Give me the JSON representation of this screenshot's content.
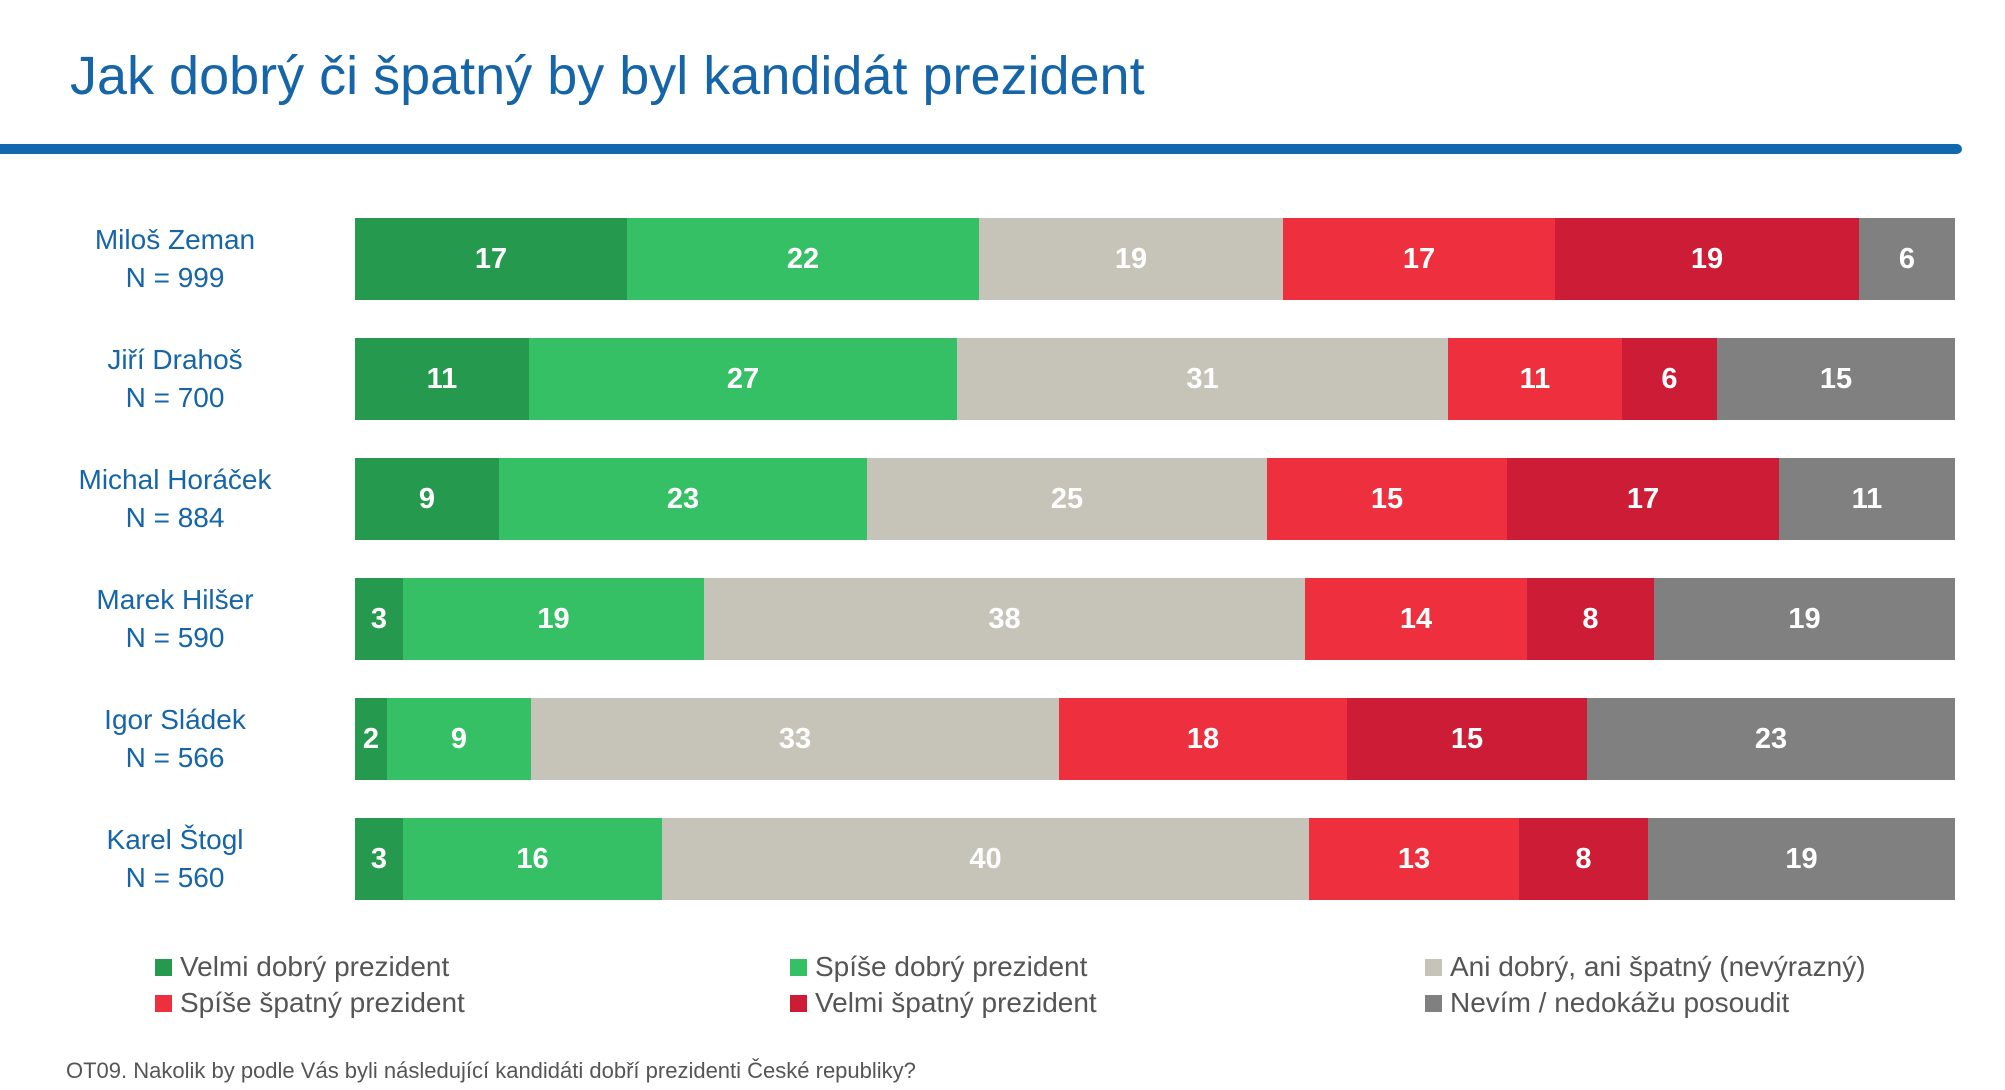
{
  "chart_data": {
    "type": "bar",
    "orientation": "horizontal",
    "stacked": true,
    "title": "Jak dobrý či špatný by byl kandidát prezident",
    "categories": [
      {
        "name": "Miloš Zeman",
        "n": "N = 999"
      },
      {
        "name": "Jiří Drahoš",
        "n": "N = 700"
      },
      {
        "name": "Michal Horáček",
        "n": "N = 884"
      },
      {
        "name": "Marek Hilšer",
        "n": "N = 590"
      },
      {
        "name": "Igor Sládek",
        "n": "N = 566"
      },
      {
        "name": "Karel Štogl",
        "n": "N = 560"
      }
    ],
    "series": [
      {
        "name": "Velmi dobrý prezident",
        "color": "#259a4f",
        "values": [
          17,
          11,
          9,
          3,
          2,
          3
        ]
      },
      {
        "name": "Spíše dobrý prezident",
        "color": "#35c065",
        "values": [
          22,
          27,
          23,
          19,
          9,
          16
        ]
      },
      {
        "name": "Ani dobrý, ani špatný (nevýrazný)",
        "color": "#c6c3b8",
        "values": [
          19,
          31,
          25,
          38,
          33,
          40
        ]
      },
      {
        "name": "Spíše špatný prezident",
        "color": "#ee2f3e",
        "values": [
          17,
          11,
          15,
          14,
          18,
          13
        ]
      },
      {
        "name": "Velmi špatný prezident",
        "color": "#cd1c36",
        "values": [
          19,
          6,
          17,
          8,
          15,
          8
        ]
      },
      {
        "name": "Nevím / nedokážu posoudit",
        "color": "#808080",
        "values": [
          6,
          15,
          11,
          19,
          23,
          19
        ]
      }
    ],
    "legend_position": "bottom",
    "grid": false
  },
  "footnote": "OT09. Nakolik by podle Vás byli následující kandidáti dobří prezidenti České republiky?"
}
